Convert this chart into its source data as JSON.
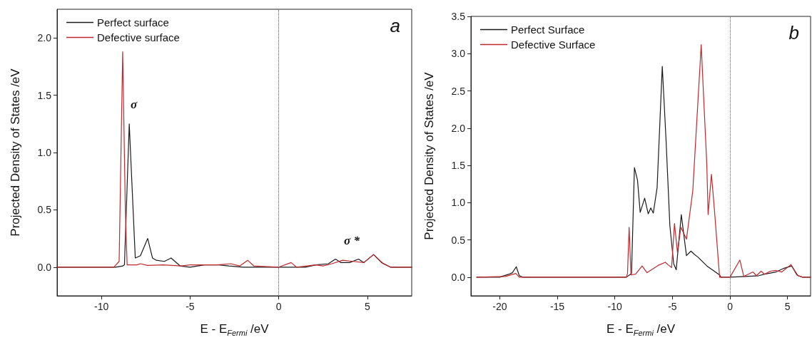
{
  "chart_data": [
    {
      "type": "line",
      "xlabel": "E - E$_{Fermi}$ /eV",
      "ylabel": "Projected Density of States /eV",
      "xlim": [
        -12.5,
        7.5
      ],
      "xticks": [
        -10,
        -5,
        0,
        5
      ],
      "ylim": [
        -0.25,
        2.25
      ],
      "yticks": [
        {
          "value": 0,
          "label": "0.0"
        },
        {
          "value": 0.5,
          "label": "0.5"
        },
        {
          "value": 1,
          "label": "1.0"
        },
        {
          "value": 1.5,
          "label": "1.5"
        },
        {
          "value": 2,
          "label": "2.0"
        }
      ],
      "legend": "top left",
      "grid": false,
      "marker": "none",
      "line_style": "solid",
      "ref_lines": [
        {
          "axis": "x",
          "value": 0,
          "line_style": "dotted",
          "color": "#555555"
        }
      ],
      "annotations": [
        "a",
        "σ",
        "σ *"
      ],
      "series": [
        {
          "name": "Perfect surface",
          "color": "#1a1a1a",
          "x": [
            -12.5,
            -9.2,
            -8.8,
            -8.7,
            -8.43,
            -8.09,
            -7.8,
            -7.39,
            -7.12,
            -6.9,
            -6.45,
            -6.07,
            -5.55,
            -5,
            -4.2,
            -3.4,
            -2.8,
            -2,
            0,
            1.5,
            2.1,
            2.8,
            3.2,
            3.5,
            4,
            4.5,
            4.8,
            5.35,
            5.8,
            6.3,
            7.5
          ],
          "values": [
            0,
            0,
            0.01,
            0.02,
            1.25,
            0.08,
            0.1,
            0.25,
            0.08,
            0.06,
            0.05,
            0.08,
            0.01,
            0,
            0.02,
            0.02,
            0.01,
            0,
            0,
            0,
            0.02,
            0.03,
            0.07,
            0.04,
            0.04,
            0.07,
            0.04,
            0.11,
            0.04,
            0,
            0
          ]
        },
        {
          "name": "Defective surface",
          "color": "#c0282d",
          "x": [
            -12.5,
            -9.3,
            -9.0,
            -8.8,
            -8.65,
            -8.55,
            -8,
            -7.8,
            -7.4,
            -6.5,
            -5.5,
            -5,
            -4.2,
            -3.5,
            -2.7,
            -2.2,
            -1.75,
            -1.4,
            0,
            0.7,
            1,
            2.1,
            2.5,
            3,
            3.6,
            4.2,
            4.8,
            5.35,
            5.9,
            6.3,
            7.5
          ],
          "values": [
            0,
            0,
            0.05,
            1.88,
            0.5,
            0.02,
            0.02,
            0.03,
            0.015,
            0.02,
            0.01,
            0.02,
            0.02,
            0.02,
            0.03,
            0.01,
            0.06,
            0.01,
            0,
            0.04,
            0,
            0.02,
            0.01,
            0.03,
            0.06,
            0.05,
            0.04,
            0.11,
            0.03,
            0,
            0
          ]
        }
      ]
    },
    {
      "type": "line",
      "xlabel": "E - E$_{Fermi}$ /eV",
      "ylabel": "Projected Density of States /eV",
      "xlim": [
        -22.5,
        7
      ],
      "xticks": [
        -20,
        -15,
        -10,
        -5,
        0,
        5
      ],
      "ylim": [
        -0.25,
        3.5
      ],
      "yticks": [
        {
          "value": 0,
          "label": "0.0"
        },
        {
          "value": 0.5,
          "label": "0.5"
        },
        {
          "value": 1,
          "label": "1.0"
        },
        {
          "value": 1.5,
          "label": "1.5"
        },
        {
          "value": 2,
          "label": "2.0"
        },
        {
          "value": 2.5,
          "label": "2.5"
        },
        {
          "value": 3,
          "label": "3.0"
        },
        {
          "value": 3.5,
          "label": "3.5"
        }
      ],
      "legend": "top left",
      "grid": false,
      "marker": "none",
      "line_style": "solid",
      "ref_lines": [
        {
          "axis": "x",
          "value": 0,
          "line_style": "dotted",
          "color": "#555555"
        }
      ],
      "annotations": [
        "b"
      ],
      "series": [
        {
          "name": "Perfect Surface",
          "color": "#1a1a1a",
          "x": [
            -22,
            -20,
            -19.2,
            -18.9,
            -18.56,
            -18.3,
            -18,
            -9,
            -8.55,
            -8.3,
            -8.03,
            -7.8,
            -7.41,
            -7.1,
            -6.88,
            -6.66,
            -6.33,
            -5.88,
            -5.55,
            -5.22,
            -4.89,
            -4.67,
            -4.23,
            -3.78,
            -3.39,
            -3.12,
            -2.79,
            -2,
            -0.9,
            -0.8,
            0,
            1.3,
            2.5,
            3,
            4,
            4.7,
            5.35,
            5.9,
            6.3,
            7
          ],
          "values": [
            0,
            0,
            0.04,
            0.06,
            0.14,
            0.02,
            0,
            0,
            0.05,
            1.47,
            1.3,
            0.87,
            1.06,
            0.85,
            0.93,
            0.86,
            1.2,
            2.83,
            1.83,
            0.69,
            0.18,
            0.1,
            0.84,
            0.29,
            0.35,
            0.31,
            0.27,
            0.15,
            0.03,
            0,
            0,
            0.01,
            0.02,
            0.04,
            0.07,
            0.12,
            0.15,
            0.02,
            0,
            0
          ]
        },
        {
          "name": "Defective Surface",
          "color": "#c0282d",
          "x": [
            -22,
            -19.5,
            -18.6,
            -18.3,
            -9,
            -8.9,
            -8.76,
            -8.6,
            -8.2,
            -7.63,
            -7.21,
            -6.22,
            -5.62,
            -5.33,
            -5.07,
            -4.82,
            -4.56,
            -4.27,
            -3.78,
            -3.23,
            -2.5,
            -2.01,
            -1.9,
            -1.61,
            -1.35,
            -0.9,
            0,
            0.86,
            1.2,
            2,
            2.3,
            2.7,
            3,
            3.5,
            4,
            4.5,
            5.3,
            5.8,
            6.3,
            7
          ],
          "values": [
            0,
            0.01,
            0.05,
            0,
            0,
            0.05,
            0.67,
            0.03,
            0.04,
            0.15,
            0.06,
            0.16,
            0.2,
            0.16,
            0.13,
            0.72,
            0.33,
            0.67,
            0.51,
            1.16,
            3.12,
            1.5,
            0.84,
            1.38,
            0.9,
            0,
            0,
            0.23,
            0.01,
            0.07,
            0.02,
            0.08,
            0.04,
            0.08,
            0.09,
            0.07,
            0.17,
            0.03,
            0,
            0
          ]
        }
      ]
    }
  ]
}
